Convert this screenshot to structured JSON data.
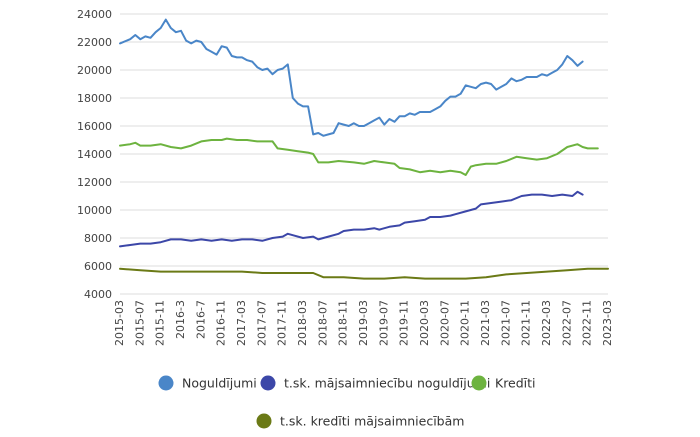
{
  "chart_data": {
    "type": "line",
    "title": "",
    "xlabel": "",
    "ylabel": "",
    "ylim": [
      4000,
      24000
    ],
    "yticks": [
      4000,
      6000,
      8000,
      10000,
      12000,
      14000,
      16000,
      18000,
      20000,
      22000,
      24000
    ],
    "grid": "horizontal",
    "legend_position": "bottom",
    "x_tick_labels": [
      "2015-03",
      "2015-07",
      "2015-11",
      "2016-3",
      "2016-7",
      "2016-11",
      "2017-03",
      "2017-07",
      "2017-11",
      "2018-03",
      "2018-07",
      "2018-11",
      "2019-03",
      "2019-07",
      "2019-11",
      "2020-03",
      "2020-07",
      "2020-11",
      "2021-03",
      "2021-07",
      "2021-11",
      "2022-03",
      "2022-07",
      "2022-11",
      "2023-03"
    ],
    "x_start": "2015-03",
    "x_months": 97,
    "series": [
      {
        "name": "Noguldījumi",
        "color": "#4a86c8",
        "points": [
          [
            "2015-03",
            21900
          ],
          [
            "2015-05",
            22200
          ],
          [
            "2015-06",
            22500
          ],
          [
            "2015-07",
            22200
          ],
          [
            "2015-08",
            22400
          ],
          [
            "2015-09",
            22300
          ],
          [
            "2015-10",
            22700
          ],
          [
            "2015-11",
            23000
          ],
          [
            "2015-12",
            23600
          ],
          [
            "2016-01",
            23000
          ],
          [
            "2016-02",
            22700
          ],
          [
            "2016-03",
            22800
          ],
          [
            "2016-04",
            22100
          ],
          [
            "2016-05",
            21900
          ],
          [
            "2016-06",
            22100
          ],
          [
            "2016-07",
            22000
          ],
          [
            "2016-08",
            21500
          ],
          [
            "2016-09",
            21300
          ],
          [
            "2016-10",
            21100
          ],
          [
            "2016-11",
            21700
          ],
          [
            "2016-12",
            21600
          ],
          [
            "2017-01",
            21000
          ],
          [
            "2017-02",
            20900
          ],
          [
            "2017-03",
            20900
          ],
          [
            "2017-04",
            20700
          ],
          [
            "2017-05",
            20600
          ],
          [
            "2017-06",
            20200
          ],
          [
            "2017-07",
            20000
          ],
          [
            "2017-08",
            20100
          ],
          [
            "2017-09",
            19700
          ],
          [
            "2017-10",
            20000
          ],
          [
            "2017-11",
            20100
          ],
          [
            "2017-12",
            20400
          ],
          [
            "2018-01",
            18000
          ],
          [
            "2018-02",
            17600
          ],
          [
            "2018-03",
            17400
          ],
          [
            "2018-04",
            17400
          ],
          [
            "2018-05",
            15400
          ],
          [
            "2018-06",
            15500
          ],
          [
            "2018-07",
            15300
          ],
          [
            "2018-08",
            15400
          ],
          [
            "2018-09",
            15500
          ],
          [
            "2018-10",
            16200
          ],
          [
            "2018-11",
            16100
          ],
          [
            "2018-12",
            16000
          ],
          [
            "2019-01",
            16200
          ],
          [
            "2019-02",
            16000
          ],
          [
            "2019-03",
            16000
          ],
          [
            "2019-04",
            16200
          ],
          [
            "2019-05",
            16400
          ],
          [
            "2019-06",
            16600
          ],
          [
            "2019-07",
            16100
          ],
          [
            "2019-08",
            16500
          ],
          [
            "2019-09",
            16300
          ],
          [
            "2019-10",
            16700
          ],
          [
            "2019-11",
            16700
          ],
          [
            "2019-12",
            16900
          ],
          [
            "2020-01",
            16800
          ],
          [
            "2020-02",
            17000
          ],
          [
            "2020-03",
            17000
          ],
          [
            "2020-04",
            17000
          ],
          [
            "2020-05",
            17200
          ],
          [
            "2020-06",
            17400
          ],
          [
            "2020-07",
            17800
          ],
          [
            "2020-08",
            18100
          ],
          [
            "2020-09",
            18100
          ],
          [
            "2020-10",
            18300
          ],
          [
            "2020-11",
            18900
          ],
          [
            "2020-12",
            18800
          ],
          [
            "2021-01",
            18700
          ],
          [
            "2021-02",
            19000
          ],
          [
            "2021-03",
            19100
          ],
          [
            "2021-04",
            19000
          ],
          [
            "2021-05",
            18600
          ],
          [
            "2021-06",
            18800
          ],
          [
            "2021-07",
            19000
          ],
          [
            "2021-08",
            19400
          ],
          [
            "2021-09",
            19200
          ],
          [
            "2021-10",
            19300
          ],
          [
            "2021-11",
            19500
          ],
          [
            "2021-12",
            19500
          ],
          [
            "2022-01",
            19500
          ],
          [
            "2022-02",
            19700
          ],
          [
            "2022-03",
            19600
          ],
          [
            "2022-04",
            19800
          ],
          [
            "2022-05",
            20000
          ],
          [
            "2022-06",
            20400
          ],
          [
            "2022-07",
            21000
          ],
          [
            "2022-08",
            20700
          ],
          [
            "2022-09",
            20300
          ],
          [
            "2022-10",
            20600
          ]
        ]
      },
      {
        "name": "t.sk. mājsaimniecību noguldījumi",
        "color": "#3c47a8",
        "points": [
          [
            "2015-03",
            7400
          ],
          [
            "2015-05",
            7500
          ],
          [
            "2015-07",
            7600
          ],
          [
            "2015-09",
            7600
          ],
          [
            "2015-11",
            7700
          ],
          [
            "2016-01",
            7900
          ],
          [
            "2016-03",
            7900
          ],
          [
            "2016-05",
            7800
          ],
          [
            "2016-07",
            7900
          ],
          [
            "2016-09",
            7800
          ],
          [
            "2016-11",
            7900
          ],
          [
            "2017-01",
            7800
          ],
          [
            "2017-03",
            7900
          ],
          [
            "2017-05",
            7900
          ],
          [
            "2017-07",
            7800
          ],
          [
            "2017-09",
            8000
          ],
          [
            "2017-11",
            8100
          ],
          [
            "2017-12",
            8300
          ],
          [
            "2018-01",
            8200
          ],
          [
            "2018-03",
            8000
          ],
          [
            "2018-05",
            8100
          ],
          [
            "2018-06",
            7900
          ],
          [
            "2018-08",
            8100
          ],
          [
            "2018-10",
            8300
          ],
          [
            "2018-11",
            8500
          ],
          [
            "2019-01",
            8600
          ],
          [
            "2019-03",
            8600
          ],
          [
            "2019-05",
            8700
          ],
          [
            "2019-06",
            8600
          ],
          [
            "2019-08",
            8800
          ],
          [
            "2019-10",
            8900
          ],
          [
            "2019-11",
            9100
          ],
          [
            "2020-01",
            9200
          ],
          [
            "2020-03",
            9300
          ],
          [
            "2020-04",
            9500
          ],
          [
            "2020-06",
            9500
          ],
          [
            "2020-08",
            9600
          ],
          [
            "2020-09",
            9700
          ],
          [
            "2020-11",
            9900
          ],
          [
            "2021-01",
            10100
          ],
          [
            "2021-02",
            10400
          ],
          [
            "2021-04",
            10500
          ],
          [
            "2021-06",
            10600
          ],
          [
            "2021-08",
            10700
          ],
          [
            "2021-10",
            11000
          ],
          [
            "2021-12",
            11100
          ],
          [
            "2022-02",
            11100
          ],
          [
            "2022-04",
            11000
          ],
          [
            "2022-06",
            11100
          ],
          [
            "2022-08",
            11000
          ],
          [
            "2022-09",
            11300
          ],
          [
            "2022-10",
            11100
          ]
        ]
      },
      {
        "name": "Kredīti",
        "color": "#6db33f",
        "points": [
          [
            "2015-03",
            14600
          ],
          [
            "2015-05",
            14700
          ],
          [
            "2015-06",
            14800
          ],
          [
            "2015-07",
            14600
          ],
          [
            "2015-09",
            14600
          ],
          [
            "2015-11",
            14700
          ],
          [
            "2016-01",
            14500
          ],
          [
            "2016-03",
            14400
          ],
          [
            "2016-05",
            14600
          ],
          [
            "2016-07",
            14900
          ],
          [
            "2016-09",
            15000
          ],
          [
            "2016-11",
            15000
          ],
          [
            "2016-12",
            15100
          ],
          [
            "2017-02",
            15000
          ],
          [
            "2017-04",
            15000
          ],
          [
            "2017-06",
            14900
          ],
          [
            "2017-08",
            14900
          ],
          [
            "2017-09",
            14900
          ],
          [
            "2017-10",
            14400
          ],
          [
            "2017-12",
            14300
          ],
          [
            "2018-02",
            14200
          ],
          [
            "2018-04",
            14100
          ],
          [
            "2018-05",
            14000
          ],
          [
            "2018-06",
            13400
          ],
          [
            "2018-08",
            13400
          ],
          [
            "2018-10",
            13500
          ],
          [
            "2019-01",
            13400
          ],
          [
            "2019-03",
            13300
          ],
          [
            "2019-05",
            13500
          ],
          [
            "2019-07",
            13400
          ],
          [
            "2019-09",
            13300
          ],
          [
            "2019-10",
            13000
          ],
          [
            "2019-12",
            12900
          ],
          [
            "2020-02",
            12700
          ],
          [
            "2020-04",
            12800
          ],
          [
            "2020-06",
            12700
          ],
          [
            "2020-08",
            12800
          ],
          [
            "2020-10",
            12700
          ],
          [
            "2020-11",
            12500
          ],
          [
            "2020-12",
            13100
          ],
          [
            "2021-01",
            13200
          ],
          [
            "2021-03",
            13300
          ],
          [
            "2021-05",
            13300
          ],
          [
            "2021-07",
            13500
          ],
          [
            "2021-09",
            13800
          ],
          [
            "2021-11",
            13700
          ],
          [
            "2022-01",
            13600
          ],
          [
            "2022-03",
            13700
          ],
          [
            "2022-05",
            14000
          ],
          [
            "2022-07",
            14500
          ],
          [
            "2022-09",
            14700
          ],
          [
            "2022-10",
            14500
          ],
          [
            "2022-11",
            14400
          ],
          [
            "2023-01",
            14400
          ]
        ]
      },
      {
        "name": "t.sk. kredīti mājsaimniecībām",
        "color": "#6b7a16",
        "points": [
          [
            "2015-03",
            5800
          ],
          [
            "2015-07",
            5700
          ],
          [
            "2015-11",
            5600
          ],
          [
            "2016-03",
            5600
          ],
          [
            "2016-07",
            5600
          ],
          [
            "2016-11",
            5600
          ],
          [
            "2017-03",
            5600
          ],
          [
            "2017-07",
            5500
          ],
          [
            "2017-11",
            5500
          ],
          [
            "2018-03",
            5500
          ],
          [
            "2018-05",
            5500
          ],
          [
            "2018-07",
            5200
          ],
          [
            "2018-11",
            5200
          ],
          [
            "2019-03",
            5100
          ],
          [
            "2019-07",
            5100
          ],
          [
            "2019-11",
            5200
          ],
          [
            "2020-03",
            5100
          ],
          [
            "2020-07",
            5100
          ],
          [
            "2020-11",
            5100
          ],
          [
            "2021-03",
            5200
          ],
          [
            "2021-07",
            5400
          ],
          [
            "2021-11",
            5500
          ],
          [
            "2022-03",
            5600
          ],
          [
            "2022-07",
            5700
          ],
          [
            "2022-11",
            5800
          ],
          [
            "2023-03",
            5800
          ]
        ]
      }
    ]
  }
}
